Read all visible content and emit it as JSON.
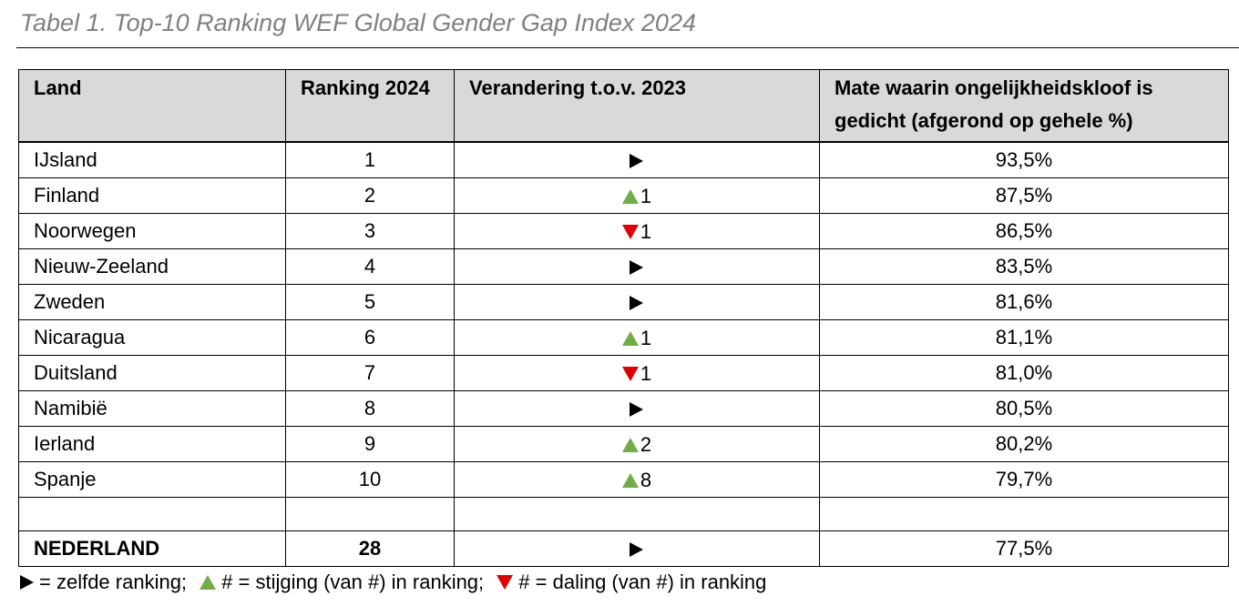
{
  "caption": "Tabel 1. Top-10 Ranking WEF Global Gender Gap Index 2024",
  "colors": {
    "up": "#70ad47",
    "down": "#e00000",
    "same": "#000000",
    "header_bg": "#d9d9d9"
  },
  "headers": {
    "land": "Land",
    "rank": "Ranking 2024",
    "change": "Verandering t.o.v. 2023",
    "gap": "Mate waarin ongelijkheidskloof is gedicht (afgerond op gehele %)"
  },
  "rows": [
    {
      "land": "IJsland",
      "rank": "1",
      "change_dir": "same",
      "change_val": "",
      "gap": "93,5%"
    },
    {
      "land": "Finland",
      "rank": "2",
      "change_dir": "up",
      "change_val": "1",
      "gap": "87,5%"
    },
    {
      "land": "Noorwegen",
      "rank": "3",
      "change_dir": "down",
      "change_val": "1",
      "gap": "86,5%"
    },
    {
      "land": "Nieuw-Zeeland",
      "rank": "4",
      "change_dir": "same",
      "change_val": "",
      "gap": "83,5%"
    },
    {
      "land": "Zweden",
      "rank": "5",
      "change_dir": "same",
      "change_val": "",
      "gap": "81,6%"
    },
    {
      "land": "Nicaragua",
      "rank": "6",
      "change_dir": "up",
      "change_val": "1",
      "gap": "81,1%"
    },
    {
      "land": "Duitsland",
      "rank": "7",
      "change_dir": "down",
      "change_val": "1",
      "gap": "81,0%"
    },
    {
      "land": "Namibië",
      "rank": "8",
      "change_dir": "same",
      "change_val": "",
      "gap": "80,5%"
    },
    {
      "land": "Ierland",
      "rank": "9",
      "change_dir": "up",
      "change_val": "2",
      "gap": "80,2%"
    },
    {
      "land": "Spanje",
      "rank": "10",
      "change_dir": "up",
      "change_val": "8",
      "gap": "79,7%"
    }
  ],
  "netherlands": {
    "land": "NEDERLAND",
    "rank": "28",
    "change_dir": "same",
    "change_val": "",
    "gap": "77,5%"
  },
  "legend": {
    "same": "= zelfde ranking;",
    "up": "# = stijging (van #) in ranking;",
    "down": "# = daling (van #) in ranking"
  }
}
